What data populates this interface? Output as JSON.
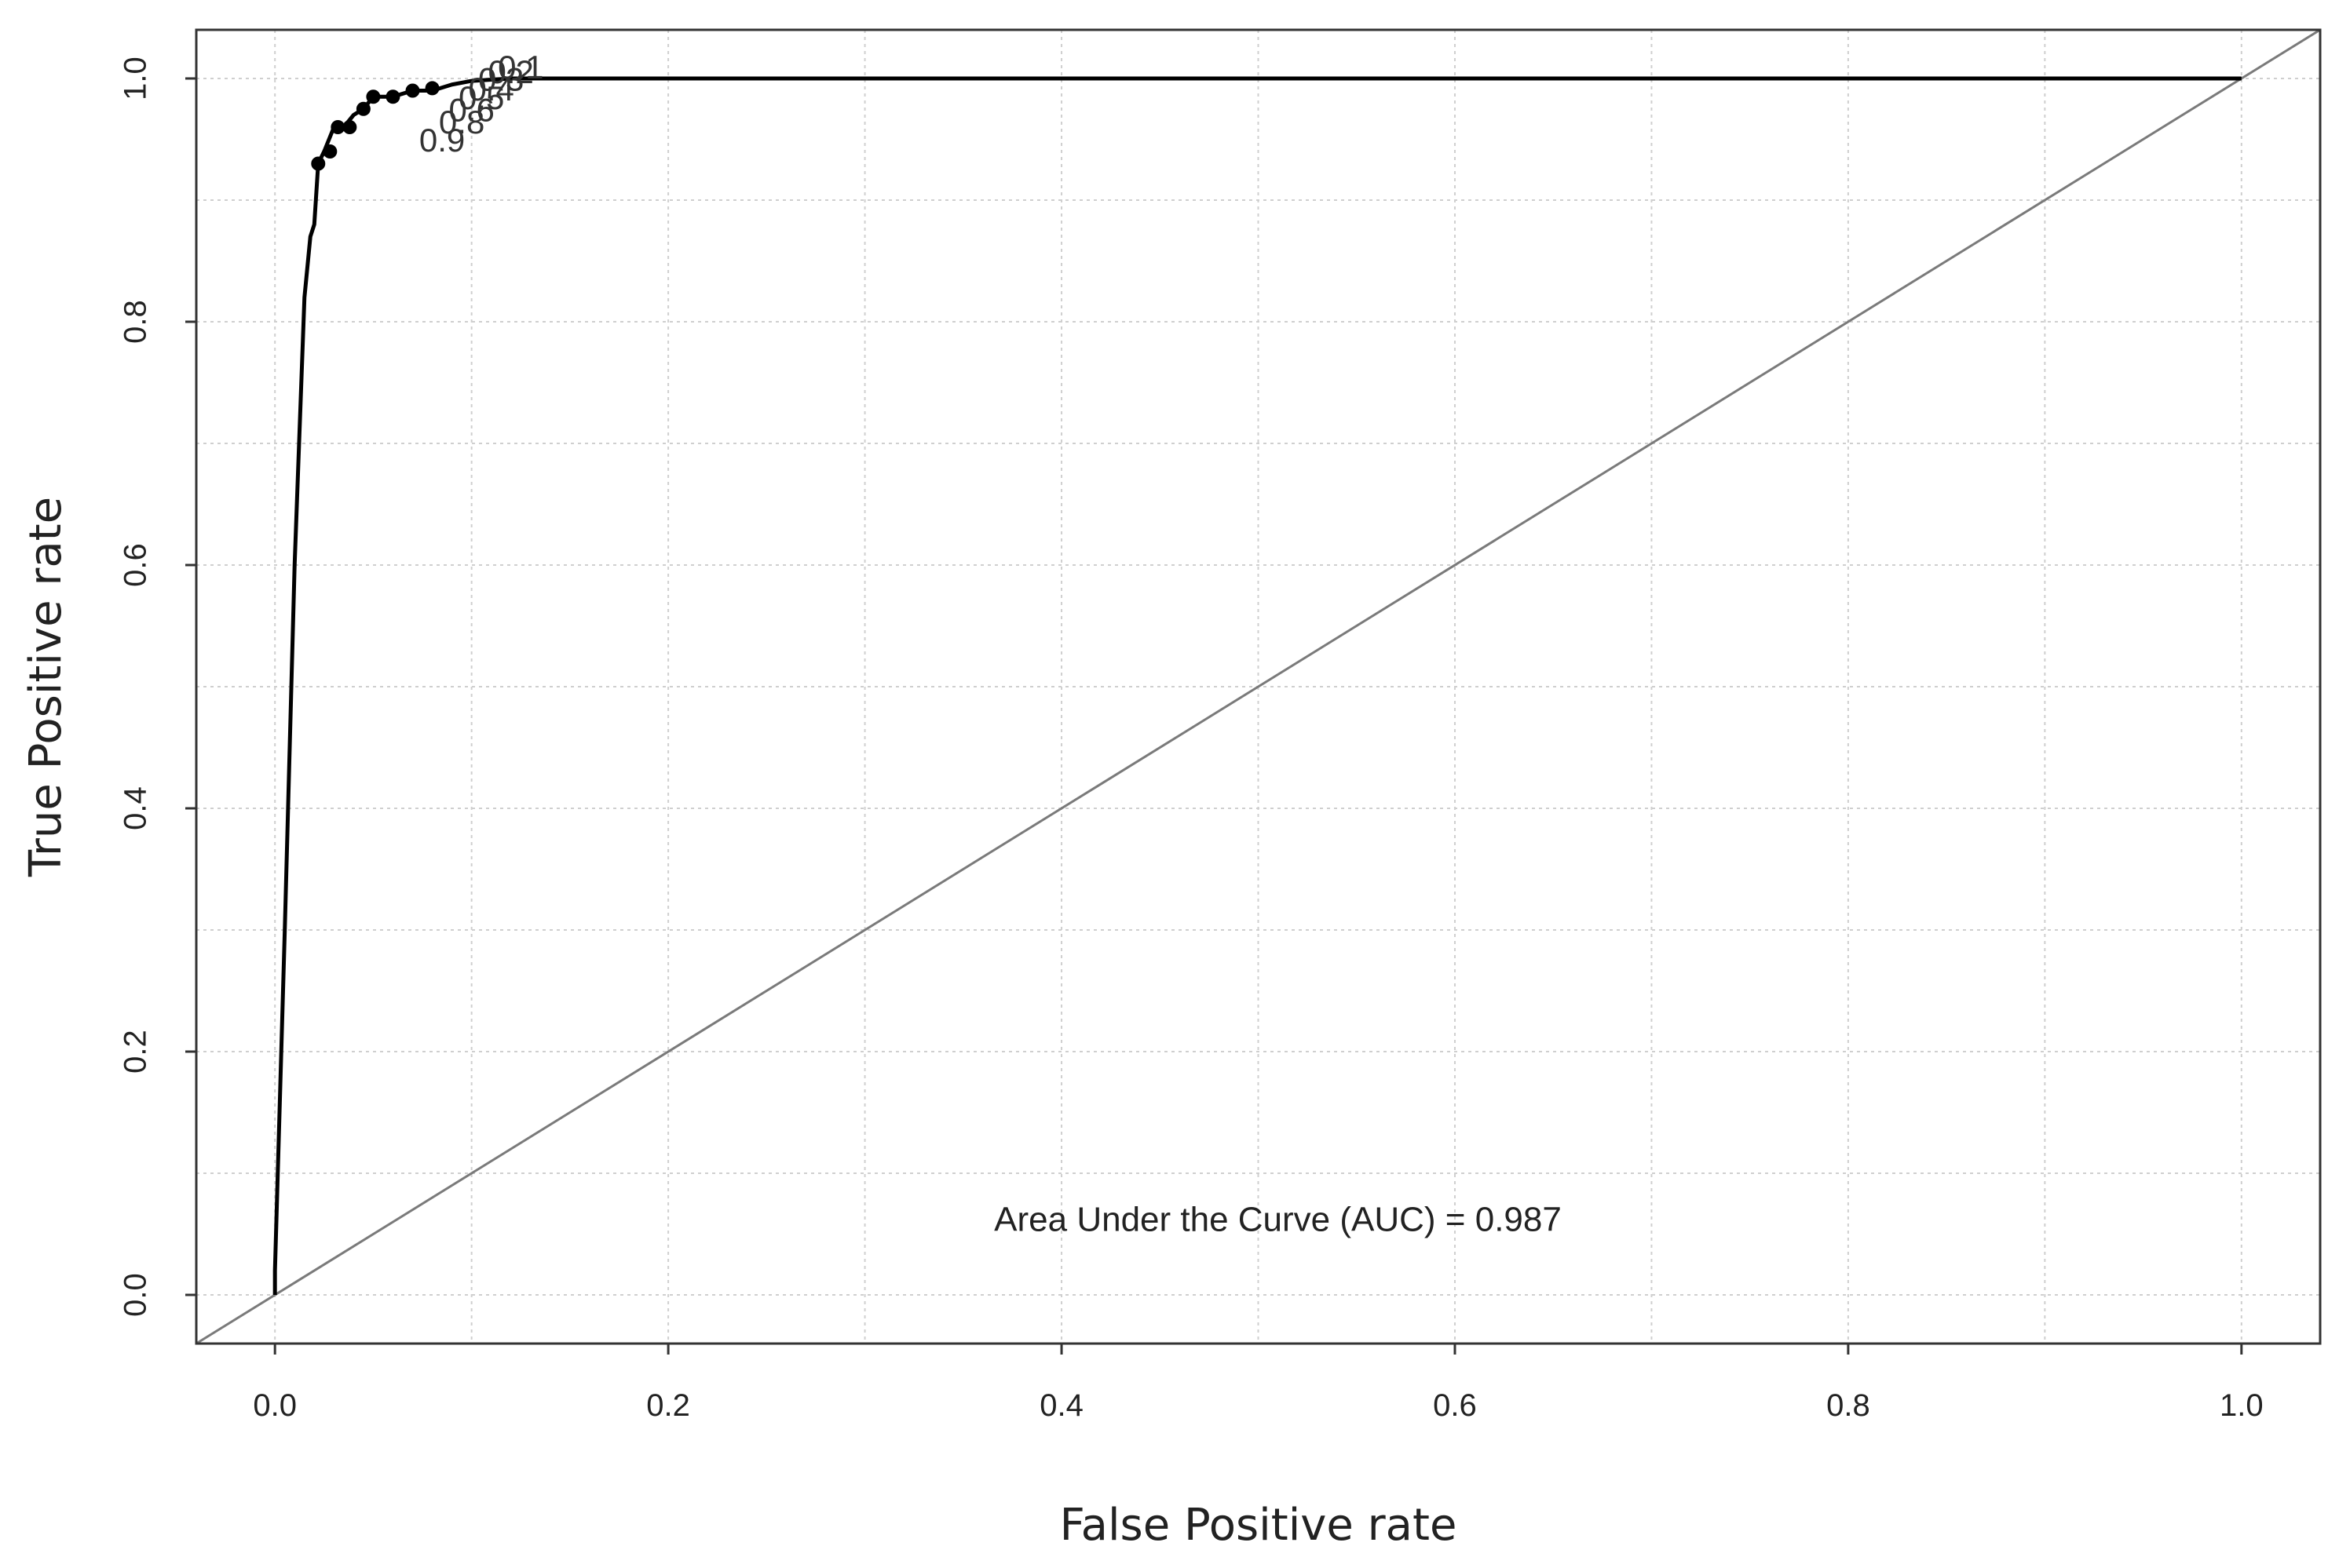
{
  "chart_data": {
    "type": "line",
    "title": "",
    "xlabel": "False Positive rate",
    "ylabel": "True Positive rate",
    "xlim": [
      -0.04,
      1.04
    ],
    "ylim": [
      -0.04,
      1.04
    ],
    "x_ticks": [
      0.0,
      0.2,
      0.4,
      0.6,
      0.8,
      1.0
    ],
    "y_ticks": [
      0.0,
      0.2,
      0.4,
      0.6,
      0.8,
      1.0
    ],
    "x_tick_labels": [
      "0.0",
      "0.2",
      "0.4",
      "0.6",
      "0.8",
      "1.0"
    ],
    "y_tick_labels": [
      "0.0",
      "0.2",
      "0.4",
      "0.6",
      "0.8",
      "1.0"
    ],
    "grid": true,
    "series": [
      {
        "kind": "roc-curve",
        "color": "#000000",
        "x": [
          0.0,
          0.0,
          0.005,
          0.01,
          0.015,
          0.018,
          0.02,
          0.022,
          0.025,
          0.03,
          0.035,
          0.04,
          0.045,
          0.05,
          0.06,
          0.07,
          0.08,
          0.09,
          0.1,
          0.12,
          0.13,
          0.15,
          0.2,
          0.4,
          0.6,
          0.8,
          1.0
        ],
        "y": [
          0.0,
          0.02,
          0.3,
          0.6,
          0.82,
          0.87,
          0.88,
          0.93,
          0.94,
          0.96,
          0.96,
          0.97,
          0.975,
          0.985,
          0.985,
          0.99,
          0.99,
          0.995,
          0.998,
          1.0,
          1.0,
          1.0,
          1.0,
          1.0,
          1.0,
          1.0,
          1.0
        ]
      },
      {
        "kind": "reference-diagonal",
        "color": "#7a7a7a",
        "x": [
          -0.04,
          1.04
        ],
        "y": [
          -0.04,
          1.04
        ]
      }
    ],
    "threshold_points": [
      {
        "x": 0.022,
        "y": 0.93
      },
      {
        "x": 0.028,
        "y": 0.94
      },
      {
        "x": 0.032,
        "y": 0.96
      },
      {
        "x": 0.038,
        "y": 0.96
      },
      {
        "x": 0.045,
        "y": 0.975
      },
      {
        "x": 0.05,
        "y": 0.985
      },
      {
        "x": 0.06,
        "y": 0.985
      },
      {
        "x": 0.07,
        "y": 0.99
      },
      {
        "x": 0.08,
        "y": 0.992
      }
    ],
    "threshold_labels": [
      {
        "text": "0.9",
        "x": 0.085,
        "y": 0.94
      },
      {
        "text": "0.8",
        "x": 0.095,
        "y": 0.955
      },
      {
        "text": "0.6",
        "x": 0.1,
        "y": 0.965
      },
      {
        "text": "0.5",
        "x": 0.105,
        "y": 0.975
      },
      {
        "text": "0.4",
        "x": 0.11,
        "y": 0.982
      },
      {
        "text": "0.3",
        "x": 0.115,
        "y": 0.99
      },
      {
        "text": "0.2",
        "x": 0.12,
        "y": 0.996
      },
      {
        "text": "0.1",
        "x": 0.125,
        "y": 1.0
      }
    ],
    "annotations": [
      {
        "text": "Area Under the Curve (AUC) = 0.987",
        "x": 0.5,
        "y": 0.06
      }
    ]
  }
}
